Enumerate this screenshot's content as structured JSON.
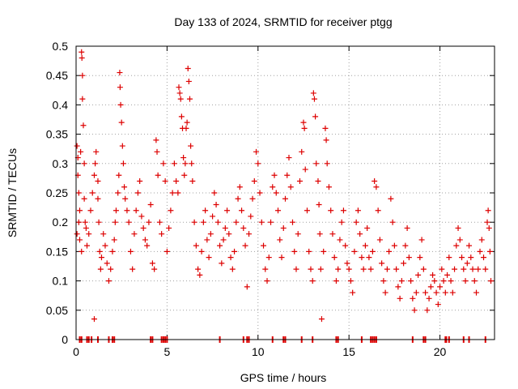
{
  "chart_data": {
    "type": "scatter",
    "title": "Day 133 of 2024, SRMTID for receiver ptgg",
    "xlabel": "GPS time / hours",
    "ylabel": "SRMTID / TECUs",
    "xlim": [
      0,
      23
    ],
    "ylim": [
      0,
      0.5
    ],
    "xticks": [
      0,
      5,
      10,
      15,
      20
    ],
    "xtick_labels": [
      "0",
      "5",
      "10",
      "15",
      "20"
    ],
    "yticks": [
      0,
      0.05,
      0.1,
      0.15,
      0.2,
      0.25,
      0.3,
      0.35,
      0.4,
      0.45,
      0.5
    ],
    "ytick_labels": [
      "0",
      "0.05",
      "0.1",
      "0.15",
      "0.2",
      "0.25",
      "0.3",
      "0.35",
      "0.4",
      "0.45",
      "0.5"
    ],
    "grid": true,
    "marker": "+",
    "marker_color": "#dd0000",
    "series": [
      {
        "name": "SRMTID",
        "points": [
          [
            0.05,
            0.33
          ],
          [
            0.1,
            0.31
          ],
          [
            0.1,
            0.28
          ],
          [
            0.15,
            0.25
          ],
          [
            0.15,
            0.2
          ],
          [
            0.05,
            0.18
          ],
          [
            0.2,
            0.17
          ],
          [
            0.2,
            0.22
          ],
          [
            0.25,
            0.32
          ],
          [
            0.3,
            0.15
          ],
          [
            0.3,
            0.49
          ],
          [
            0.32,
            0.48
          ],
          [
            0.35,
            0.45
          ],
          [
            0.35,
            0.41
          ],
          [
            0.4,
            0.365
          ],
          [
            0.45,
            0.3
          ],
          [
            0.45,
            0.24
          ],
          [
            0.5,
            0.2
          ],
          [
            0.55,
            0.19
          ],
          [
            0.6,
            0.16
          ],
          [
            0.7,
            0.18
          ],
          [
            0.8,
            0.22
          ],
          [
            0.9,
            0.25
          ],
          [
            1.0,
            0.035
          ],
          [
            1.0,
            0.28
          ],
          [
            1.05,
            0.3
          ],
          [
            1.1,
            0.32
          ],
          [
            1.2,
            0.27
          ],
          [
            1.2,
            0.24
          ],
          [
            1.25,
            0.2
          ],
          [
            1.3,
            0.15
          ],
          [
            1.35,
            0.12
          ],
          [
            1.4,
            0.14
          ],
          [
            1.5,
            0.18
          ],
          [
            1.6,
            0.16
          ],
          [
            1.7,
            0.13
          ],
          [
            1.8,
            0.1
          ],
          [
            1.9,
            0.12
          ],
          [
            2.0,
            0.15
          ],
          [
            2.1,
            0.17
          ],
          [
            2.15,
            0.2
          ],
          [
            2.2,
            0.22
          ],
          [
            2.3,
            0.25
          ],
          [
            2.35,
            0.28
          ],
          [
            2.4,
            0.455
          ],
          [
            2.42,
            0.43
          ],
          [
            2.45,
            0.4
          ],
          [
            2.5,
            0.37
          ],
          [
            2.55,
            0.33
          ],
          [
            2.6,
            0.3
          ],
          [
            2.65,
            0.26
          ],
          [
            2.7,
            0.24
          ],
          [
            2.8,
            0.22
          ],
          [
            2.9,
            0.2
          ],
          [
            3.0,
            0.15
          ],
          [
            3.1,
            0.12
          ],
          [
            3.2,
            0.18
          ],
          [
            3.3,
            0.22
          ],
          [
            3.4,
            0.25
          ],
          [
            3.5,
            0.27
          ],
          [
            3.6,
            0.21
          ],
          [
            3.7,
            0.19
          ],
          [
            3.8,
            0.17
          ],
          [
            3.9,
            0.16
          ],
          [
            4.0,
            0.2
          ],
          [
            4.1,
            0.23
          ],
          [
            4.2,
            0.13
          ],
          [
            4.3,
            0.12
          ],
          [
            4.4,
            0.34
          ],
          [
            4.45,
            0.32
          ],
          [
            4.5,
            0.28
          ],
          [
            4.6,
            0.2
          ],
          [
            4.7,
            0.18
          ],
          [
            4.8,
            0.3
          ],
          [
            4.9,
            0.27
          ],
          [
            5.0,
            0.15
          ],
          [
            5.1,
            0.19
          ],
          [
            5.2,
            0.22
          ],
          [
            5.3,
            0.25
          ],
          [
            5.4,
            0.3
          ],
          [
            5.5,
            0.27
          ],
          [
            5.6,
            0.25
          ],
          [
            5.65,
            0.43
          ],
          [
            5.7,
            0.42
          ],
          [
            5.75,
            0.41
          ],
          [
            5.8,
            0.38
          ],
          [
            5.85,
            0.36
          ],
          [
            5.9,
            0.31
          ],
          [
            5.95,
            0.28
          ],
          [
            6.0,
            0.3
          ],
          [
            6.05,
            0.36
          ],
          [
            6.1,
            0.37
          ],
          [
            6.15,
            0.462
          ],
          [
            6.2,
            0.44
          ],
          [
            6.25,
            0.41
          ],
          [
            6.3,
            0.33
          ],
          [
            6.35,
            0.3
          ],
          [
            6.4,
            0.27
          ],
          [
            6.5,
            0.2
          ],
          [
            6.6,
            0.16
          ],
          [
            6.7,
            0.12
          ],
          [
            6.8,
            0.11
          ],
          [
            6.9,
            0.15
          ],
          [
            7.0,
            0.2
          ],
          [
            7.1,
            0.22
          ],
          [
            7.2,
            0.17
          ],
          [
            7.3,
            0.14
          ],
          [
            7.4,
            0.18
          ],
          [
            7.5,
            0.21
          ],
          [
            7.6,
            0.25
          ],
          [
            7.7,
            0.23
          ],
          [
            7.8,
            0.2
          ],
          [
            7.9,
            0.16
          ],
          [
            8.0,
            0.13
          ],
          [
            8.1,
            0.17
          ],
          [
            8.2,
            0.19
          ],
          [
            8.3,
            0.22
          ],
          [
            8.4,
            0.18
          ],
          [
            8.5,
            0.14
          ],
          [
            8.6,
            0.12
          ],
          [
            8.7,
            0.15
          ],
          [
            8.8,
            0.2
          ],
          [
            8.9,
            0.24
          ],
          [
            9.0,
            0.26
          ],
          [
            9.1,
            0.22
          ],
          [
            9.2,
            0.19
          ],
          [
            9.3,
            0.16
          ],
          [
            9.4,
            0.09
          ],
          [
            9.5,
            0.18
          ],
          [
            9.6,
            0.21
          ],
          [
            9.7,
            0.24
          ],
          [
            9.8,
            0.27
          ],
          [
            9.9,
            0.32
          ],
          [
            10.0,
            0.3
          ],
          [
            10.1,
            0.25
          ],
          [
            10.2,
            0.2
          ],
          [
            10.3,
            0.16
          ],
          [
            10.4,
            0.12
          ],
          [
            10.5,
            0.1
          ],
          [
            10.6,
            0.14
          ],
          [
            10.7,
            0.2
          ],
          [
            10.8,
            0.26
          ],
          [
            10.9,
            0.28
          ],
          [
            11.0,
            0.25
          ],
          [
            11.1,
            0.22
          ],
          [
            11.2,
            0.17
          ],
          [
            11.3,
            0.14
          ],
          [
            11.4,
            0.19
          ],
          [
            11.5,
            0.24
          ],
          [
            11.6,
            0.28
          ],
          [
            11.7,
            0.31
          ],
          [
            11.8,
            0.26
          ],
          [
            11.9,
            0.2
          ],
          [
            12.0,
            0.15
          ],
          [
            12.1,
            0.12
          ],
          [
            12.2,
            0.18
          ],
          [
            12.3,
            0.27
          ],
          [
            12.4,
            0.32
          ],
          [
            12.5,
            0.37
          ],
          [
            12.55,
            0.36
          ],
          [
            12.6,
            0.29
          ],
          [
            12.7,
            0.22
          ],
          [
            12.8,
            0.15
          ],
          [
            12.9,
            0.12
          ],
          [
            13.0,
            0.1
          ],
          [
            13.05,
            0.42
          ],
          [
            13.1,
            0.41
          ],
          [
            13.15,
            0.38
          ],
          [
            13.2,
            0.3
          ],
          [
            13.3,
            0.27
          ],
          [
            13.35,
            0.23
          ],
          [
            13.4,
            0.18
          ],
          [
            13.45,
            0.12
          ],
          [
            13.5,
            0.035
          ],
          [
            13.6,
            0.15
          ],
          [
            13.7,
            0.36
          ],
          [
            13.75,
            0.34
          ],
          [
            13.8,
            0.3
          ],
          [
            13.9,
            0.26
          ],
          [
            14.0,
            0.22
          ],
          [
            14.1,
            0.18
          ],
          [
            14.2,
            0.14
          ],
          [
            14.3,
            0.1
          ],
          [
            14.4,
            0.12
          ],
          [
            14.5,
            0.17
          ],
          [
            14.6,
            0.2
          ],
          [
            14.7,
            0.22
          ],
          [
            14.8,
            0.16
          ],
          [
            14.9,
            0.13
          ],
          [
            15.0,
            0.12
          ],
          [
            15.1,
            0.1
          ],
          [
            15.2,
            0.08
          ],
          [
            15.3,
            0.15
          ],
          [
            15.4,
            0.2
          ],
          [
            15.5,
            0.22
          ],
          [
            15.6,
            0.18
          ],
          [
            15.7,
            0.14
          ],
          [
            15.8,
            0.12
          ],
          [
            15.9,
            0.16
          ],
          [
            16.0,
            0.19
          ],
          [
            16.1,
            0.14
          ],
          [
            16.2,
            0.12
          ],
          [
            16.3,
            0.15
          ],
          [
            16.4,
            0.27
          ],
          [
            16.5,
            0.26
          ],
          [
            16.6,
            0.22
          ],
          [
            16.7,
            0.17
          ],
          [
            16.8,
            0.13
          ],
          [
            16.9,
            0.1
          ],
          [
            17.0,
            0.08
          ],
          [
            17.1,
            0.12
          ],
          [
            17.2,
            0.15
          ],
          [
            17.3,
            0.24
          ],
          [
            17.4,
            0.2
          ],
          [
            17.5,
            0.16
          ],
          [
            17.6,
            0.12
          ],
          [
            17.7,
            0.09
          ],
          [
            17.8,
            0.07
          ],
          [
            17.9,
            0.1
          ],
          [
            18.0,
            0.13
          ],
          [
            18.1,
            0.16
          ],
          [
            18.2,
            0.19
          ],
          [
            18.3,
            0.14
          ],
          [
            18.4,
            0.1
          ],
          [
            18.5,
            0.07
          ],
          [
            18.6,
            0.05
          ],
          [
            18.7,
            0.08
          ],
          [
            18.8,
            0.11
          ],
          [
            18.9,
            0.14
          ],
          [
            19.0,
            0.17
          ],
          [
            19.1,
            0.12
          ],
          [
            19.2,
            0.08
          ],
          [
            19.3,
            0.05
          ],
          [
            19.4,
            0.07
          ],
          [
            19.5,
            0.09
          ],
          [
            19.6,
            0.11
          ],
          [
            19.7,
            0.1
          ],
          [
            19.8,
            0.08
          ],
          [
            19.9,
            0.06
          ],
          [
            20.0,
            0.09
          ],
          [
            20.1,
            0.12
          ],
          [
            20.2,
            0.1
          ],
          [
            20.3,
            0.08
          ],
          [
            20.4,
            0.11
          ],
          [
            20.5,
            0.14
          ],
          [
            20.6,
            0.1
          ],
          [
            20.7,
            0.08
          ],
          [
            20.8,
            0.12
          ],
          [
            20.9,
            0.16
          ],
          [
            21.0,
            0.19
          ],
          [
            21.1,
            0.17
          ],
          [
            21.2,
            0.14
          ],
          [
            21.3,
            0.12
          ],
          [
            21.4,
            0.1
          ],
          [
            21.5,
            0.13
          ],
          [
            21.6,
            0.16
          ],
          [
            21.7,
            0.14
          ],
          [
            21.8,
            0.12
          ],
          [
            21.9,
            0.1
          ],
          [
            22.0,
            0.08
          ],
          [
            22.1,
            0.12
          ],
          [
            22.2,
            0.15
          ],
          [
            22.3,
            0.17
          ],
          [
            22.4,
            0.14
          ],
          [
            22.5,
            0.12
          ],
          [
            22.6,
            0.2
          ],
          [
            22.65,
            0.22
          ],
          [
            22.7,
            0.19
          ],
          [
            22.75,
            0.15
          ],
          [
            22.8,
            0.1
          ]
        ]
      }
    ],
    "zero_points_x": [
      0.2,
      0.3,
      0.6,
      0.7,
      0.85,
      1.2,
      1.8,
      2.0,
      2.1,
      4.1,
      4.2,
      4.7,
      4.8,
      4.9,
      5.0,
      7.9,
      9.2,
      9.4,
      9.5,
      10.8,
      11.4,
      11.5,
      12.4,
      13.0,
      14.3,
      14.4,
      15.7,
      16.2,
      16.3,
      16.4,
      16.5,
      18.5,
      19.1,
      19.2,
      20.3,
      20.35,
      20.5,
      21.3,
      21.6,
      22.5
    ]
  }
}
